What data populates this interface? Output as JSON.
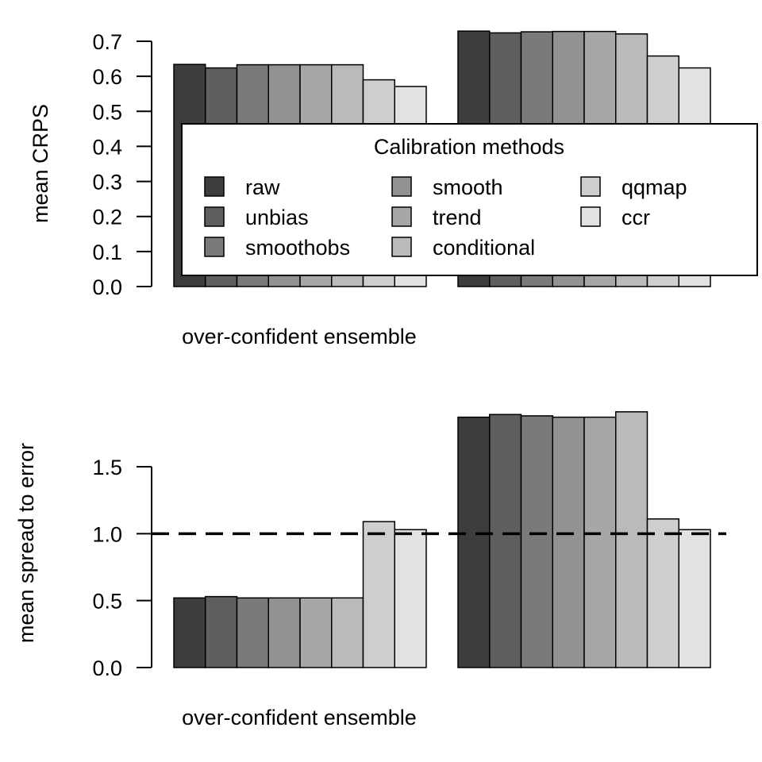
{
  "methods": [
    "raw",
    "unbias",
    "smoothobs",
    "smooth",
    "trend",
    "conditional",
    "qqmap",
    "ccr"
  ],
  "colors": [
    "#3d3d3d",
    "#5f5f5f",
    "#7a7a7a",
    "#929292",
    "#a7a7a7",
    "#bababa",
    "#cecece",
    "#e2e2e2"
  ],
  "legend": {
    "title": "Calibration methods",
    "placement": "inside, upper-middle of top panel"
  },
  "chart_data": [
    {
      "type": "bar",
      "ylabel": "mean CRPS",
      "xlabel": "over-confident ensemble",
      "ylim": [
        0,
        0.7
      ],
      "yticks": [
        "0.0",
        "0.1",
        "0.2",
        "0.3",
        "0.4",
        "0.5",
        "0.6",
        "0.7"
      ],
      "groups": [
        {
          "values": [
            0.634,
            0.624,
            0.633,
            0.633,
            0.633,
            0.633,
            0.59,
            0.571
          ]
        },
        {
          "values": [
            0.729,
            0.724,
            0.727,
            0.728,
            0.728,
            0.721,
            0.658,
            0.624
          ]
        }
      ]
    },
    {
      "type": "bar",
      "ylabel": "mean spread to error",
      "xlabel": "over-confident ensemble",
      "ylim": [
        0,
        1.8
      ],
      "yticks": [
        "0.0",
        "0.5",
        "1.0",
        "1.5"
      ],
      "reference_line": {
        "value": 1.0,
        "style": "dashed"
      },
      "groups": [
        {
          "values": [
            0.52,
            0.53,
            0.52,
            0.52,
            0.52,
            0.52,
            1.09,
            1.03
          ]
        },
        {
          "values": [
            1.87,
            1.89,
            1.88,
            1.87,
            1.87,
            1.91,
            1.11,
            1.03
          ]
        }
      ]
    }
  ]
}
